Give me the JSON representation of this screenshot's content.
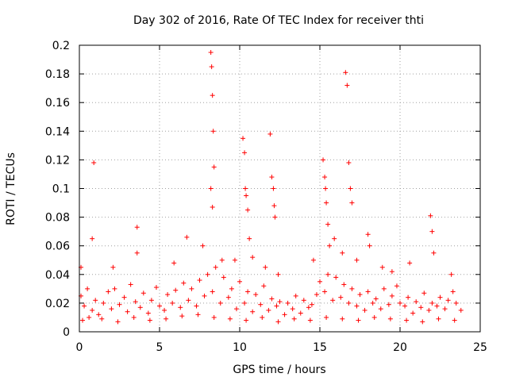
{
  "chart_data": {
    "type": "scatter",
    "title": "Day 302 of 2016, Rate Of TEC Index for receiver thti",
    "xlabel": "GPS time / hours",
    "ylabel": "ROTI / TECUs",
    "xlim": [
      0,
      25
    ],
    "ylim": [
      0,
      0.2
    ],
    "xticks": [
      0,
      5,
      10,
      15,
      20,
      25
    ],
    "yticks": [
      0,
      0.02,
      0.04,
      0.06,
      0.08,
      0.1,
      0.12,
      0.14,
      0.16,
      0.18,
      0.2
    ],
    "xtick_labels": [
      "0",
      "5",
      "10",
      "15",
      "20",
      "25"
    ],
    "ytick_labels": [
      "0",
      "0.02",
      "0.04",
      "0.06",
      "0.08",
      "0.1",
      "0.12",
      "0.14",
      "0.16",
      "0.18",
      "0.2"
    ],
    "grid": true,
    "marker": "+",
    "color": "#ff0000",
    "series": [
      {
        "name": "ROTI",
        "x": [
          0.1,
          0.3,
          0.5,
          0.8,
          1.0,
          1.2,
          1.5,
          1.8,
          2.0,
          2.2,
          2.5,
          2.8,
          3.0,
          3.2,
          3.5,
          3.8,
          4.0,
          4.3,
          4.5,
          4.8,
          5.0,
          5.3,
          5.5,
          5.8,
          6.0,
          6.3,
          6.5,
          6.8,
          7.0,
          7.3,
          7.5,
          7.8,
          8.0,
          8.3,
          8.5,
          8.8,
          9.0,
          9.3,
          9.5,
          9.8,
          10.0,
          10.3,
          10.5,
          10.8,
          11.0,
          11.3,
          11.5,
          11.8,
          12.0,
          12.3,
          12.5,
          12.8,
          13.0,
          13.3,
          13.5,
          13.8,
          14.0,
          14.3,
          14.5,
          14.8,
          15.0,
          15.3,
          15.5,
          15.8,
          16.0,
          16.3,
          16.5,
          16.8,
          17.0,
          17.3,
          17.5,
          17.8,
          18.0,
          18.3,
          18.5,
          18.8,
          19.0,
          19.3,
          19.5,
          19.8,
          20.0,
          20.3,
          20.5,
          20.8,
          21.0,
          21.3,
          21.5,
          21.8,
          22.0,
          22.3,
          22.5,
          22.8,
          23.0,
          23.3,
          23.5,
          23.8,
          0.2,
          0.6,
          1.4,
          2.4,
          3.4,
          4.4,
          5.4,
          6.4,
          7.4,
          8.4,
          9.4,
          10.4,
          11.4,
          12.4,
          13.4,
          14.4,
          15.4,
          16.4,
          17.4,
          18.4,
          19.4,
          20.4,
          21.4,
          22.4,
          23.4,
          0.9,
          2.1,
          3.6,
          6.7,
          8.2,
          8.25,
          8.3,
          8.35,
          8.4,
          8.2,
          8.3,
          10.2,
          10.3,
          10.35,
          10.4,
          10.5,
          10.6,
          11.9,
          12.0,
          12.1,
          12.15,
          12.2,
          15.2,
          15.3,
          15.35,
          15.4,
          15.5,
          15.6,
          16.6,
          16.7,
          16.8,
          16.9,
          17.0,
          18.0,
          18.1,
          21.9,
          22.0,
          22.1,
          3.6,
          5.9,
          7.7,
          8.9,
          9.7,
          10.8,
          11.6,
          12.4,
          14.6,
          15.9,
          16.4,
          17.3,
          18.9,
          19.5,
          20.6,
          23.2,
          0.8,
          0.1
        ],
        "y": [
          0.025,
          0.018,
          0.03,
          0.015,
          0.022,
          0.012,
          0.02,
          0.028,
          0.016,
          0.03,
          0.019,
          0.024,
          0.014,
          0.033,
          0.021,
          0.017,
          0.027,
          0.013,
          0.022,
          0.031,
          0.018,
          0.015,
          0.026,
          0.02,
          0.029,
          0.017,
          0.034,
          0.022,
          0.03,
          0.018,
          0.036,
          0.025,
          0.04,
          0.028,
          0.045,
          0.02,
          0.038,
          0.024,
          0.03,
          0.016,
          0.035,
          0.02,
          0.028,
          0.014,
          0.026,
          0.019,
          0.032,
          0.015,
          0.023,
          0.018,
          0.021,
          0.012,
          0.02,
          0.016,
          0.025,
          0.013,
          0.022,
          0.017,
          0.019,
          0.026,
          0.035,
          0.028,
          0.04,
          0.022,
          0.038,
          0.024,
          0.033,
          0.02,
          0.03,
          0.018,
          0.026,
          0.015,
          0.028,
          0.02,
          0.023,
          0.016,
          0.03,
          0.019,
          0.025,
          0.032,
          0.02,
          0.018,
          0.024,
          0.013,
          0.021,
          0.017,
          0.027,
          0.015,
          0.02,
          0.018,
          0.024,
          0.016,
          0.022,
          0.028,
          0.02,
          0.015,
          0.008,
          0.01,
          0.009,
          0.007,
          0.01,
          0.008,
          0.009,
          0.011,
          0.012,
          0.01,
          0.009,
          0.008,
          0.01,
          0.007,
          0.009,
          0.008,
          0.01,
          0.009,
          0.008,
          0.01,
          0.009,
          0.008,
          0.007,
          0.009,
          0.008,
          0.118,
          0.045,
          0.073,
          0.066,
          0.195,
          0.185,
          0.165,
          0.14,
          0.115,
          0.1,
          0.087,
          0.135,
          0.125,
          0.1,
          0.095,
          0.085,
          0.065,
          0.138,
          0.108,
          0.1,
          0.088,
          0.08,
          0.12,
          0.108,
          0.1,
          0.09,
          0.075,
          0.06,
          0.181,
          0.172,
          0.118,
          0.1,
          0.09,
          0.068,
          0.06,
          0.081,
          0.07,
          0.055,
          0.055,
          0.048,
          0.06,
          0.05,
          0.05,
          0.052,
          0.045,
          0.04,
          0.05,
          0.065,
          0.055,
          0.05,
          0.045,
          0.042,
          0.048,
          0.04,
          0.065,
          0.045
        ]
      }
    ]
  }
}
